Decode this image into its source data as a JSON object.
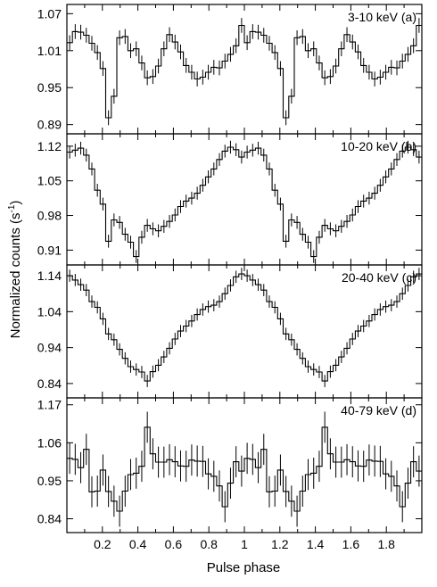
{
  "figure": {
    "ylabel_main": "Normalized counts (s",
    "ylabel_sup": "-1",
    "ylabel_close": ")",
    "xlabel": "Pulse phase"
  },
  "chart_data": [
    {
      "type": "line",
      "label": "3-10 keV (a)",
      "xlabel": "Pulse phase",
      "ylabel": "Normalized counts (s-1)",
      "xlim": [
        0,
        2
      ],
      "ylim": [
        0.875,
        1.085
      ],
      "yticks": [
        "0.89",
        "0.95",
        "1.01",
        "1.07"
      ],
      "ytick_values": [
        0.89,
        0.95,
        1.01,
        1.07
      ],
      "xticks": [],
      "x_bins": 32,
      "values": [
        1.023,
        1.041,
        1.04,
        1.035,
        1.022,
        1.007,
        0.981,
        0.901,
        0.936,
        1.031,
        1.033,
        1.01,
        1.013,
        0.99,
        0.966,
        0.968,
        0.985,
        1.013,
        1.036,
        1.024,
        1.008,
        0.986,
        0.975,
        0.964,
        0.967,
        0.975,
        0.983,
        0.982,
        0.993,
        1.004,
        1.018,
        1.051
      ],
      "errors": [
        0.012,
        0.012,
        0.012,
        0.012,
        0.012,
        0.012,
        0.012,
        0.012,
        0.012,
        0.012,
        0.012,
        0.012,
        0.012,
        0.012,
        0.012,
        0.012,
        0.012,
        0.012,
        0.012,
        0.012,
        0.012,
        0.012,
        0.012,
        0.012,
        0.012,
        0.012,
        0.012,
        0.012,
        0.012,
        0.012,
        0.012,
        0.012
      ]
    },
    {
      "type": "line",
      "label": "10-20 keV (b)",
      "xlabel": "Pulse phase",
      "ylabel": "Normalized counts (s-1)",
      "xlim": [
        0,
        2
      ],
      "ylim": [
        0.88,
        1.145
      ],
      "yticks": [
        "0.91",
        "0.98",
        "1.05",
        "1.12"
      ],
      "ytick_values": [
        0.91,
        0.98,
        1.05,
        1.12
      ],
      "xticks": [],
      "x_bins": 32,
      "values": [
        1.108,
        1.112,
        1.116,
        1.102,
        1.074,
        1.031,
        1.003,
        0.928,
        0.971,
        0.966,
        0.942,
        0.926,
        0.897,
        0.936,
        0.96,
        0.953,
        0.949,
        0.958,
        0.968,
        0.981,
        0.998,
        1.009,
        1.015,
        1.025,
        1.041,
        1.058,
        1.074,
        1.093,
        1.11,
        1.118,
        1.113,
        1.098
      ],
      "errors": [
        0.013,
        0.013,
        0.013,
        0.013,
        0.013,
        0.013,
        0.013,
        0.013,
        0.013,
        0.013,
        0.013,
        0.013,
        0.013,
        0.013,
        0.013,
        0.013,
        0.013,
        0.013,
        0.013,
        0.013,
        0.013,
        0.013,
        0.013,
        0.013,
        0.013,
        0.013,
        0.013,
        0.013,
        0.013,
        0.013,
        0.013,
        0.013
      ]
    },
    {
      "type": "line",
      "label": "20-40 keV (c)",
      "xlabel": "Pulse phase",
      "ylabel": "Normalized counts (s-1)",
      "xlim": [
        0,
        2
      ],
      "ylim": [
        0.8,
        1.17
      ],
      "yticks": [
        "0.84",
        "0.94",
        "1.04",
        "1.14"
      ],
      "ytick_values": [
        0.84,
        0.94,
        1.04,
        1.14
      ],
      "xticks": [],
      "x_bins": 32,
      "values": [
        1.14,
        1.128,
        1.115,
        1.1,
        1.068,
        1.052,
        1.02,
        0.978,
        0.962,
        0.935,
        0.91,
        0.887,
        0.879,
        0.872,
        0.847,
        0.873,
        0.891,
        0.914,
        0.938,
        0.964,
        0.986,
        1.0,
        1.014,
        1.032,
        1.046,
        1.054,
        1.058,
        1.068,
        1.09,
        1.113,
        1.137,
        1.145
      ],
      "errors": [
        0.017,
        0.017,
        0.017,
        0.017,
        0.017,
        0.017,
        0.017,
        0.017,
        0.017,
        0.017,
        0.017,
        0.017,
        0.017,
        0.017,
        0.017,
        0.017,
        0.017,
        0.017,
        0.017,
        0.017,
        0.017,
        0.017,
        0.017,
        0.017,
        0.017,
        0.017,
        0.017,
        0.017,
        0.017,
        0.017,
        0.017,
        0.017
      ]
    },
    {
      "type": "line",
      "label": "40-79 keV (d)",
      "xlabel": "Pulse phase",
      "ylabel": "Normalized counts (s-1)",
      "xlim": [
        0,
        2
      ],
      "ylim": [
        0.8,
        1.19
      ],
      "yticks": [
        "0.84",
        "0.95",
        "1.06",
        "1.17"
      ],
      "ytick_values": [
        0.84,
        0.95,
        1.06,
        1.17
      ],
      "xticks": [
        "0.2",
        "0.4",
        "0.6",
        "0.8",
        "1",
        "1.2",
        "1.4",
        "1.6",
        "1.8"
      ],
      "xtick_values": [
        0.2,
        0.4,
        0.6,
        0.8,
        1.0,
        1.2,
        1.4,
        1.6,
        1.8
      ],
      "x_bins": 32,
      "values": [
        1.015,
        1.012,
        0.988,
        1.041,
        0.918,
        0.92,
        0.981,
        0.919,
        0.891,
        0.862,
        0.92,
        0.968,
        0.972,
        0.992,
        1.105,
        1.028,
        1.004,
        1.004,
        1.011,
        1.005,
        0.993,
        0.992,
        1.01,
        1.007,
        1.006,
        0.97,
        0.963,
        0.935,
        0.875,
        0.943,
        1.005,
        0.978
      ],
      "errors": [
        0.045,
        0.045,
        0.045,
        0.045,
        0.045,
        0.045,
        0.045,
        0.045,
        0.045,
        0.045,
        0.045,
        0.045,
        0.045,
        0.045,
        0.045,
        0.045,
        0.045,
        0.045,
        0.045,
        0.045,
        0.045,
        0.045,
        0.045,
        0.045,
        0.045,
        0.045,
        0.045,
        0.045,
        0.045,
        0.045,
        0.045,
        0.045
      ]
    }
  ]
}
